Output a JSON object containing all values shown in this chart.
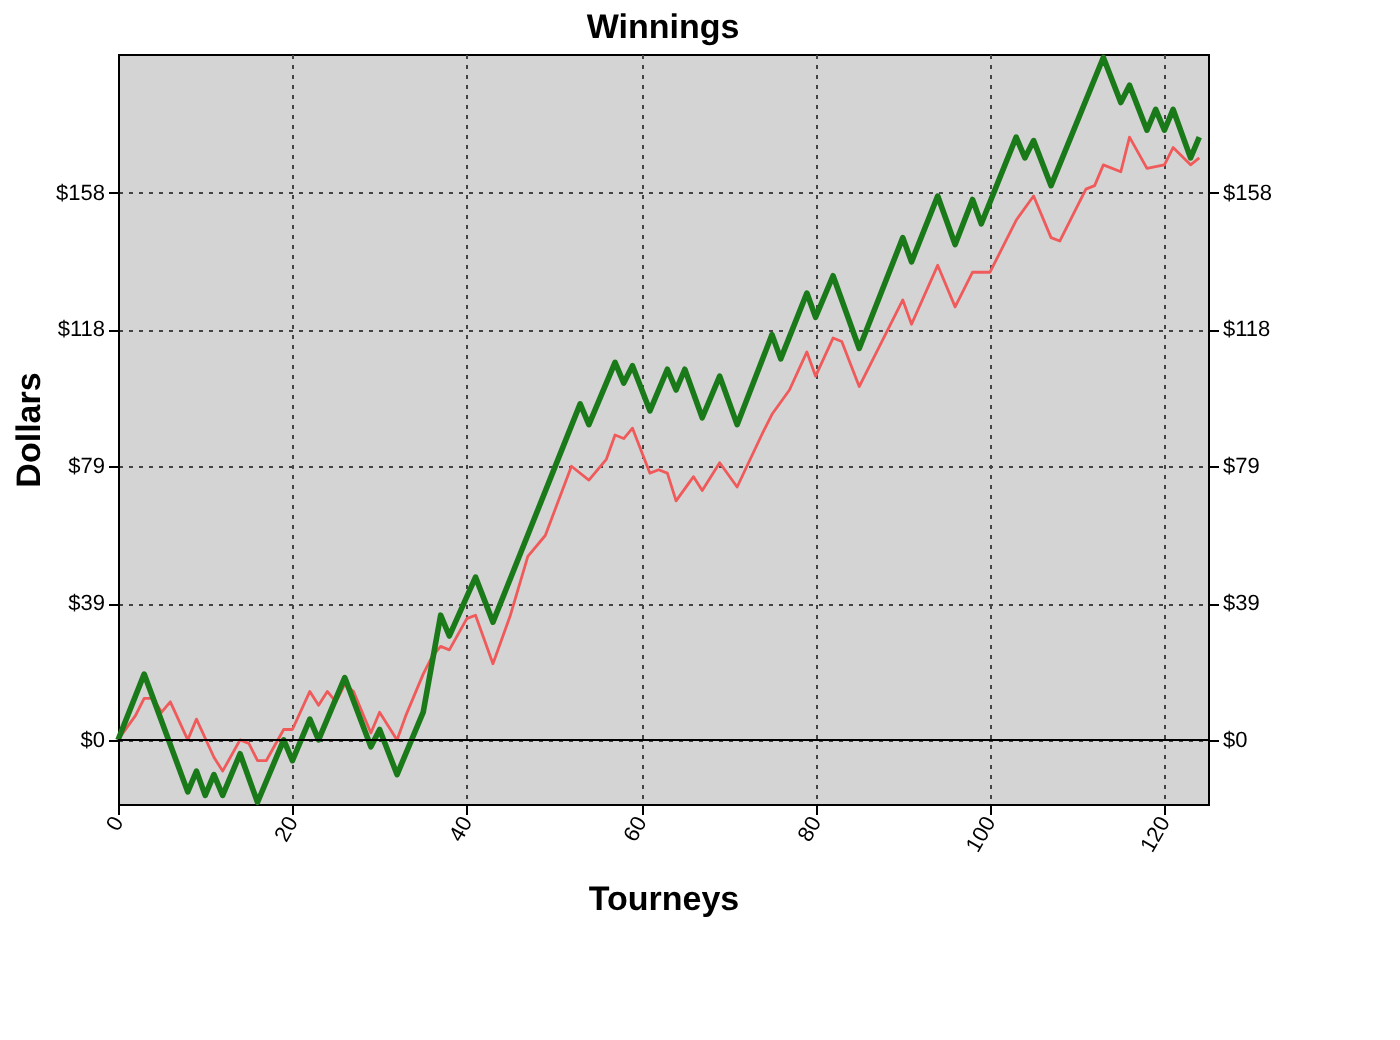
{
  "chart_data": {
    "type": "line",
    "title": "Winnings",
    "xlabel": "Tourneys",
    "ylabel": "Dollars",
    "xlim": [
      0,
      125
    ],
    "xticks": [
      0,
      20,
      40,
      60,
      80,
      100,
      120
    ],
    "ylim": [
      -18.5,
      198
    ],
    "yticks": [
      {
        "value": 0,
        "label": "$0"
      },
      {
        "value": 39.5,
        "label": "$39"
      },
      {
        "value": 79,
        "label": "$79"
      },
      {
        "value": 118.5,
        "label": "$118"
      },
      {
        "value": 158,
        "label": "$158"
      }
    ],
    "y2lim": [
      -18.5,
      198
    ],
    "y2ticks": [
      {
        "value": 0,
        "label": "$0"
      },
      {
        "value": 39.5,
        "label": "$39"
      },
      {
        "value": 79,
        "label": "$79"
      },
      {
        "value": 118.5,
        "label": "$118"
      },
      {
        "value": 158,
        "label": "$158"
      }
    ],
    "grid": true,
    "marker": "none",
    "line_style": "solid",
    "ref_lines": [
      {
        "axis": "y",
        "value": 0,
        "color": "#000000",
        "line_style": "solid"
      }
    ],
    "series": [
      {
        "color": "#f05a5a",
        "x": [
          0,
          2,
          3,
          4,
          5,
          6,
          8,
          9,
          11,
          12,
          14,
          15,
          16,
          17,
          19,
          20,
          22,
          23,
          24,
          25,
          26,
          27,
          29,
          30,
          32,
          33,
          35,
          36,
          37,
          38,
          40,
          41,
          43,
          45,
          47,
          49,
          52,
          54,
          56,
          57,
          58,
          59,
          61,
          62,
          63,
          64,
          66,
          67,
          69,
          71,
          74,
          75,
          77,
          79,
          80,
          82,
          83,
          85,
          90,
          91,
          94,
          96,
          98,
          100,
          103,
          105,
          107,
          108,
          111,
          112,
          113,
          115,
          116,
          118,
          120,
          121,
          123,
          124
        ],
        "values": [
          0,
          7,
          12,
          12,
          8,
          11,
          0,
          6,
          -5,
          -9,
          0,
          -1,
          -6,
          -6,
          3,
          3,
          14,
          10,
          14,
          11,
          16,
          14,
          2,
          8,
          0,
          7,
          19,
          24,
          27,
          26,
          35,
          36,
          22,
          36,
          53,
          59,
          79,
          75,
          81,
          88,
          87,
          90,
          77,
          78,
          77,
          69,
          76,
          72,
          80,
          73,
          89,
          94,
          101,
          112,
          105,
          116,
          115,
          102,
          127,
          120,
          137,
          125,
          135,
          135,
          150,
          157,
          145,
          144,
          159,
          160,
          166,
          164,
          174,
          165,
          166,
          171,
          166,
          168
        ]
      },
      {
        "color": "#1a7a1a",
        "x": [
          0,
          3,
          8,
          9,
          10,
          11,
          12,
          14,
          16,
          19,
          20,
          22,
          23,
          26,
          29,
          30,
          32,
          35,
          37,
          38,
          41,
          43,
          53,
          54,
          57,
          58,
          59,
          61,
          63,
          64,
          65,
          67,
          69,
          71,
          75,
          76,
          79,
          80,
          82,
          85,
          90,
          91,
          94,
          96,
          98,
          99,
          103,
          104,
          105,
          107,
          113,
          115,
          116,
          118,
          119,
          120,
          121,
          123,
          124
        ],
        "values": [
          0,
          19,
          -15,
          -9,
          -16,
          -10,
          -16,
          -4,
          -18,
          0,
          -6,
          6,
          0,
          18,
          -2,
          3,
          -10,
          8,
          36,
          30,
          47,
          34,
          97,
          91,
          109,
          103,
          108,
          95,
          107,
          101,
          107,
          93,
          105,
          91,
          117,
          110,
          129,
          122,
          134,
          113,
          145,
          138,
          157,
          143,
          156,
          149,
          174,
          168,
          173,
          160,
          197,
          184,
          189,
          176,
          182,
          176,
          182,
          168,
          174
        ]
      }
    ]
  }
}
